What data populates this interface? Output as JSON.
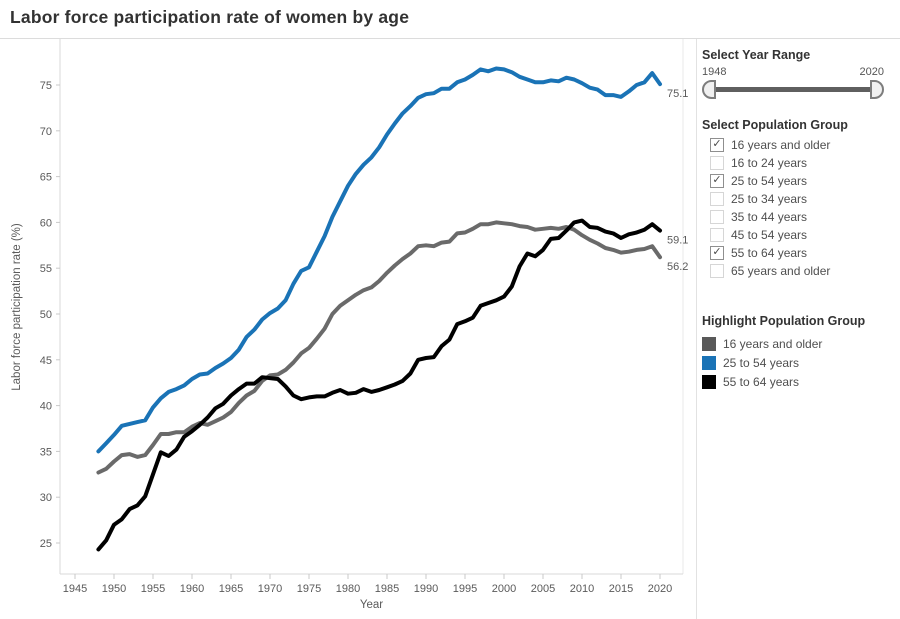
{
  "header": {
    "title": "Labor force participation rate of women by age"
  },
  "panel": {
    "year_range": {
      "label": "Select Year Range",
      "min": "1948",
      "max": "2020"
    },
    "population_group": {
      "label": "Select Population Group",
      "options": [
        {
          "label": "16 years and older",
          "checked": true
        },
        {
          "label": "16 to 24 years",
          "checked": false
        },
        {
          "label": "25 to 54 years",
          "checked": true
        },
        {
          "label": "25 to 34 years",
          "checked": false
        },
        {
          "label": "35 to 44 years",
          "checked": false
        },
        {
          "label": "45 to 54 years",
          "checked": false
        },
        {
          "label": "55 to 64 years",
          "checked": true
        },
        {
          "label": "65 years and older",
          "checked": false
        }
      ]
    },
    "highlight": {
      "label": "Highlight Population Group",
      "items": [
        {
          "label": "16 years and older",
          "color": "#595959"
        },
        {
          "label": "25 to 54 years",
          "color": "#1a73b6"
        },
        {
          "label": "55 to 64 years",
          "color": "#000000"
        }
      ]
    }
  },
  "chart_data": {
    "type": "line",
    "title": "Labor force participation rate of women by age",
    "xlabel": "Year",
    "ylabel": "Labor force participation rate (%)",
    "xlim": [
      1943,
      2023
    ],
    "ylim": [
      22,
      80
    ],
    "grid": false,
    "legend_position": "right",
    "x_ticks": [
      1945,
      1950,
      1955,
      1960,
      1965,
      1970,
      1975,
      1980,
      1985,
      1990,
      1995,
      2000,
      2005,
      2010,
      2015,
      2020
    ],
    "y_ticks": [
      25,
      30,
      35,
      40,
      45,
      50,
      55,
      60,
      65,
      70,
      75
    ],
    "years": [
      1948,
      1949,
      1950,
      1951,
      1952,
      1953,
      1954,
      1955,
      1956,
      1957,
      1958,
      1959,
      1960,
      1961,
      1962,
      1963,
      1964,
      1965,
      1966,
      1967,
      1968,
      1969,
      1970,
      1971,
      1972,
      1973,
      1974,
      1975,
      1976,
      1977,
      1978,
      1979,
      1980,
      1981,
      1982,
      1983,
      1984,
      1985,
      1986,
      1987,
      1988,
      1989,
      1990,
      1991,
      1992,
      1993,
      1994,
      1995,
      1996,
      1997,
      1998,
      1999,
      2000,
      2001,
      2002,
      2003,
      2004,
      2005,
      2006,
      2007,
      2008,
      2009,
      2010,
      2011,
      2012,
      2013,
      2014,
      2015,
      2016,
      2017,
      2018,
      2019,
      2020
    ],
    "series": [
      {
        "name": "16 years and older",
        "color": "#6a6a6a",
        "end_label": "56.2",
        "values": [
          32.7,
          33.1,
          33.9,
          34.6,
          34.7,
          34.4,
          34.6,
          35.7,
          36.9,
          36.9,
          37.1,
          37.1,
          37.7,
          38.1,
          37.9,
          38.3,
          38.7,
          39.3,
          40.3,
          41.1,
          41.6,
          42.7,
          43.3,
          43.4,
          43.9,
          44.7,
          45.7,
          46.3,
          47.3,
          48.4,
          50.0,
          50.9,
          51.5,
          52.1,
          52.6,
          52.9,
          53.6,
          54.5,
          55.3,
          56.0,
          56.6,
          57.4,
          57.5,
          57.4,
          57.8,
          57.9,
          58.8,
          58.9,
          59.3,
          59.8,
          59.8,
          60.0,
          59.9,
          59.8,
          59.6,
          59.5,
          59.2,
          59.3,
          59.4,
          59.3,
          59.5,
          59.2,
          58.6,
          58.1,
          57.7,
          57.2,
          57.0,
          56.7,
          56.8,
          57.0,
          57.1,
          57.4,
          56.2
        ]
      },
      {
        "name": "25 to 54 years",
        "color": "#1a73b6",
        "end_label": "75.1",
        "values": [
          35.0,
          35.9,
          36.8,
          37.8,
          38.0,
          38.2,
          38.4,
          39.8,
          40.8,
          41.5,
          41.8,
          42.2,
          42.9,
          43.4,
          43.5,
          44.1,
          44.6,
          45.2,
          46.1,
          47.5,
          48.3,
          49.4,
          50.1,
          50.6,
          51.5,
          53.3,
          54.7,
          55.1,
          56.8,
          58.5,
          60.6,
          62.3,
          64.0,
          65.3,
          66.3,
          67.1,
          68.2,
          69.6,
          70.8,
          71.9,
          72.7,
          73.6,
          74.0,
          74.1,
          74.6,
          74.6,
          75.3,
          75.6,
          76.1,
          76.7,
          76.5,
          76.8,
          76.7,
          76.4,
          75.9,
          75.6,
          75.3,
          75.3,
          75.5,
          75.4,
          75.8,
          75.6,
          75.2,
          74.7,
          74.5,
          73.9,
          73.9,
          73.7,
          74.3,
          75.0,
          75.3,
          76.3,
          75.1
        ]
      },
      {
        "name": "55 to 64 years",
        "color": "#000000",
        "end_label": "59.1",
        "values": [
          24.3,
          25.3,
          27.0,
          27.6,
          28.7,
          29.1,
          30.1,
          32.5,
          34.9,
          34.5,
          35.2,
          36.6,
          37.2,
          37.9,
          38.7,
          39.7,
          40.2,
          41.1,
          41.8,
          42.4,
          42.4,
          43.1,
          43.0,
          42.9,
          42.1,
          41.1,
          40.7,
          40.9,
          41.0,
          41.0,
          41.4,
          41.7,
          41.3,
          41.4,
          41.8,
          41.5,
          41.7,
          42.0,
          42.3,
          42.7,
          43.5,
          45.0,
          45.2,
          45.3,
          46.5,
          47.2,
          48.9,
          49.2,
          49.6,
          50.9,
          51.2,
          51.5,
          51.9,
          53.0,
          55.2,
          56.6,
          56.3,
          57.0,
          58.2,
          58.3,
          59.1,
          60.0,
          60.2,
          59.5,
          59.4,
          59.0,
          58.8,
          58.3,
          58.7,
          58.9,
          59.2,
          59.8,
          59.1
        ]
      }
    ]
  }
}
